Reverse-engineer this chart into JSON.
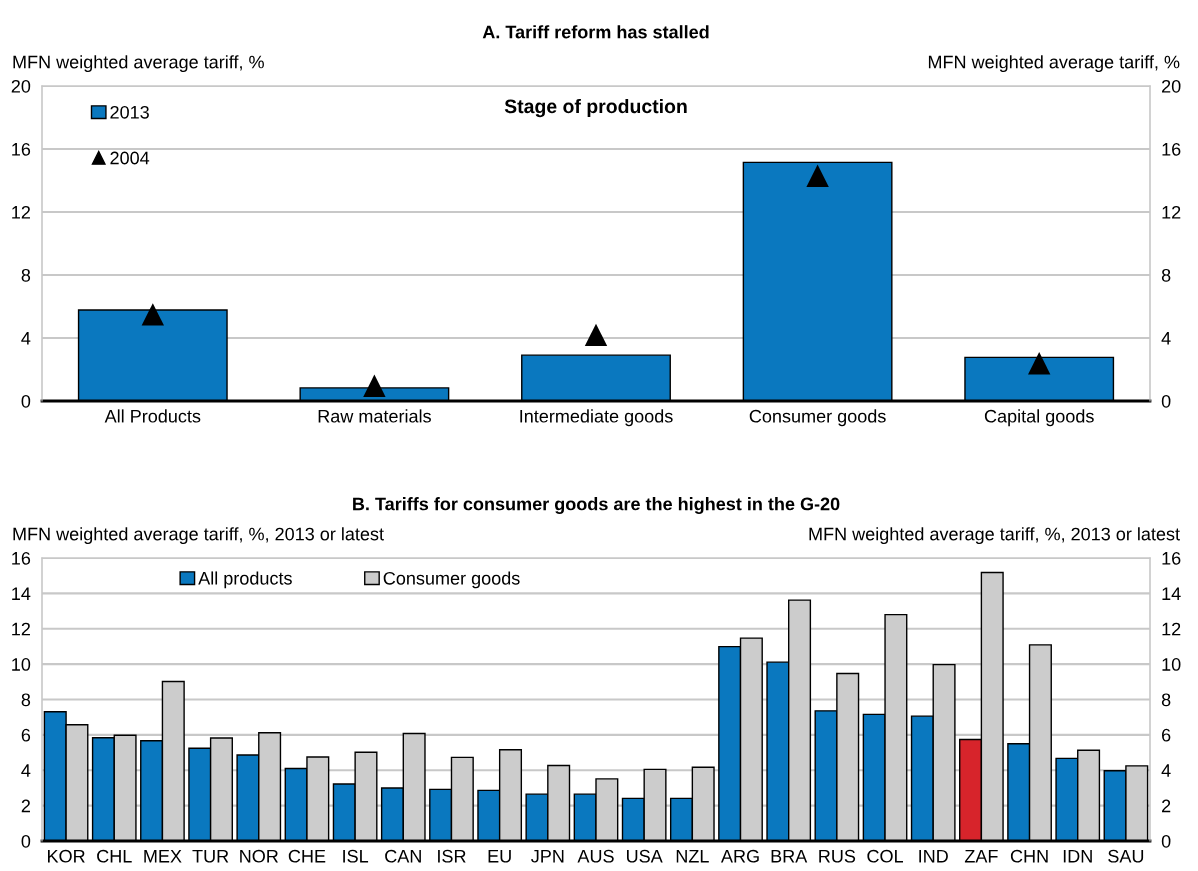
{
  "chart_data": [
    {
      "type": "bar",
      "title": "A. Tariff reform has stalled",
      "ylabel": "MFN weighted average tariff, %",
      "y2label": "MFN weighted average tariff, %",
      "annotations": [
        "Stage of production"
      ],
      "categories": [
        "All Products",
        "Raw materials",
        "Intermediate goods",
        "Consumer goods",
        "Capital goods"
      ],
      "series": [
        {
          "name": "2013",
          "type": "bar",
          "color": "#0a78bf",
          "values": [
            5.78,
            0.83,
            2.91,
            15.15,
            2.77
          ]
        },
        {
          "name": "2004",
          "type": "scatter",
          "marker": "triangle",
          "color": "#000000",
          "x": [
            "All Products",
            "Raw materials",
            "Intermediate goods",
            "Consumer goods",
            "Capital goods"
          ],
          "values": [
            5.5,
            0.97,
            4.2,
            14.3,
            2.4
          ]
        }
      ],
      "ylim": [
        0,
        20
      ],
      "yticks": [
        0,
        4,
        8,
        12,
        16,
        20
      ],
      "y2lim": [
        0,
        20
      ],
      "y2ticks": [
        0,
        4,
        8,
        12,
        16,
        20
      ],
      "grid": "y",
      "legend": "top left"
    },
    {
      "type": "bar",
      "title": "B. Tariffs for consumer goods are the highest in the G-20",
      "ylabel": "MFN weighted average tariff, %, 2013 or latest",
      "y2label": "MFN weighted average tariff, %, 2013 or latest",
      "categories": [
        "KOR",
        "CHL",
        "MEX",
        "TUR",
        "NOR",
        "CHE",
        "ISL",
        "CAN",
        "ISR",
        "EU",
        "JPN",
        "AUS",
        "USA",
        "NZL",
        "ARG",
        "BRA",
        "RUS",
        "COL",
        "IND",
        "ZAF",
        "CHN",
        "IDN",
        "SAU"
      ],
      "series": [
        {
          "name": "All products",
          "color": "#0a78bf",
          "colors": [
            "#0a78bf",
            "#0a78bf",
            "#0a78bf",
            "#0a78bf",
            "#0a78bf",
            "#0a78bf",
            "#0a78bf",
            "#0a78bf",
            "#0a78bf",
            "#0a78bf",
            "#0a78bf",
            "#0a78bf",
            "#0a78bf",
            "#0a78bf",
            "#0a78bf",
            "#0a78bf",
            "#0a78bf",
            "#0a78bf",
            "#0a78bf",
            "#d7242b",
            "#0a78bf",
            "#0a78bf",
            "#0a78bf"
          ],
          "values": [
            7.31,
            5.84,
            5.67,
            5.24,
            4.86,
            4.1,
            3.22,
            3.0,
            2.92,
            2.86,
            2.65,
            2.65,
            2.41,
            2.41,
            10.99,
            10.11,
            7.36,
            7.16,
            7.06,
            5.74,
            5.5,
            4.67,
            3.97
          ]
        },
        {
          "name": "Consumer goods",
          "color": "#cccccc",
          "values": [
            6.57,
            5.98,
            9.02,
            5.82,
            6.12,
            4.75,
            5.02,
            6.08,
            4.73,
            5.16,
            4.27,
            3.51,
            4.05,
            4.17,
            11.47,
            13.62,
            9.47,
            12.8,
            9.97,
            15.18,
            11.09,
            5.13,
            4.25
          ]
        }
      ],
      "ylim": [
        0,
        16
      ],
      "yticks": [
        0,
        2,
        4,
        6,
        8,
        10,
        12,
        14,
        16
      ],
      "y2lim": [
        0,
        16
      ],
      "y2ticks": [
        0,
        2,
        4,
        6,
        8,
        10,
        12,
        14,
        16
      ],
      "grid": "y",
      "legend": "top left"
    }
  ]
}
